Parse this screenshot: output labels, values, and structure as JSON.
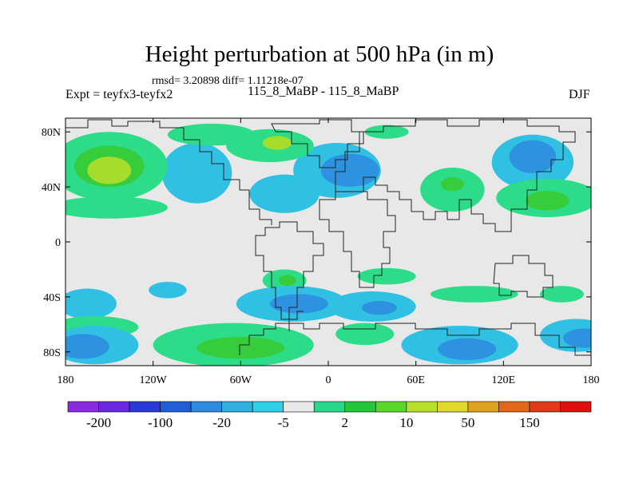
{
  "chart_data": {
    "type": "heatmap",
    "title": "Height perturbation at 500 hPa (in m)",
    "stats_text": "rmsd= 3.20898 diff= 1.11218e-07",
    "left_label": "Expt = teyfx3-teyfx2",
    "center_label": "115_8_MaBP - 115_8_MaBP",
    "right_label": "DJF",
    "x_range": [
      -180,
      180
    ],
    "y_range": [
      -90,
      90
    ],
    "x_ticks": [
      {
        "value": -180,
        "label": "180"
      },
      {
        "value": -120,
        "label": "120W"
      },
      {
        "value": -60,
        "label": "60W"
      },
      {
        "value": 0,
        "label": "0"
      },
      {
        "value": 60,
        "label": "60E"
      },
      {
        "value": 120,
        "label": "120E"
      },
      {
        "value": 180,
        "label": "180"
      }
    ],
    "y_ticks": [
      {
        "value": 80,
        "label": "80N"
      },
      {
        "value": 40,
        "label": "40N"
      },
      {
        "value": 0,
        "label": "0"
      },
      {
        "value": -40,
        "label": "40S"
      },
      {
        "value": -80,
        "label": "80S"
      }
    ],
    "colorbar": {
      "colors": [
        "#8a2be2",
        "#6a28e0",
        "#2a3ad8",
        "#1e5fd8",
        "#2d8be0",
        "#2fb0e0",
        "#2fd0e8",
        "#e8e8e8",
        "#2ad88a",
        "#22c83a",
        "#5ad82a",
        "#b8e02a",
        "#e0d82a",
        "#e0a020",
        "#e06818",
        "#e03818",
        "#e01010"
      ],
      "labels": [
        {
          "index": 1,
          "text": "-200"
        },
        {
          "index": 3,
          "text": "-100"
        },
        {
          "index": 5,
          "text": "-20"
        },
        {
          "index": 7,
          "text": "-5"
        },
        {
          "index": 9,
          "text": "2"
        },
        {
          "index": 11,
          "text": "10"
        },
        {
          "index": 13,
          "text": "50"
        },
        {
          "index": 15,
          "text": "150"
        }
      ]
    },
    "regions": [
      {
        "level": "light-blue",
        "lon": 6,
        "lat": 52,
        "rlon": 30,
        "rlat": 20
      },
      {
        "level": "mid-blue",
        "lon": 15,
        "lat": 52,
        "rlon": 20,
        "rlat": 12
      },
      {
        "level": "light-blue",
        "lon": -90,
        "lat": 50,
        "rlon": 24,
        "rlat": 22
      },
      {
        "level": "light-blue",
        "lon": -30,
        "lat": 35,
        "rlon": 24,
        "rlat": 14
      },
      {
        "level": "green",
        "lon": -40,
        "lat": 70,
        "rlon": 30,
        "rlat": 12
      },
      {
        "level": "yellow-green",
        "lon": -35,
        "lat": 72,
        "rlon": 10,
        "rlat": 5
      },
      {
        "level": "green",
        "lon": -80,
        "lat": 78,
        "rlon": 30,
        "rlat": 8
      },
      {
        "level": "green",
        "lon": 40,
        "lat": 80,
        "rlon": 15,
        "rlat": 5
      },
      {
        "level": "green",
        "lon": -150,
        "lat": 55,
        "rlon": 40,
        "rlat": 25
      },
      {
        "level": "mid-green",
        "lon": -150,
        "lat": 55,
        "rlon": 24,
        "rlat": 15
      },
      {
        "level": "yellow-green",
        "lon": -150,
        "lat": 52,
        "rlon": 15,
        "rlat": 10
      },
      {
        "level": "green",
        "lon": -150,
        "lat": 25,
        "rlon": 40,
        "rlat": 8
      },
      {
        "level": "light-blue",
        "lon": 140,
        "lat": 58,
        "rlon": 28,
        "rlat": 20
      },
      {
        "level": "mid-blue",
        "lon": 140,
        "lat": 62,
        "rlon": 16,
        "rlat": 12
      },
      {
        "level": "green",
        "lon": 150,
        "lat": 32,
        "rlon": 35,
        "rlat": 14
      },
      {
        "level": "mid-green",
        "lon": 150,
        "lat": 30,
        "rlon": 15,
        "rlat": 7
      },
      {
        "level": "green",
        "lon": 85,
        "lat": 38,
        "rlon": 22,
        "rlat": 16
      },
      {
        "level": "mid-green",
        "lon": 85,
        "lat": 42,
        "rlon": 8,
        "rlat": 5
      },
      {
        "level": "green",
        "lon": -30,
        "lat": -28,
        "rlon": 15,
        "rlat": 8
      },
      {
        "level": "mid-green",
        "lon": -28,
        "lat": -28,
        "rlon": 6,
        "rlat": 4
      },
      {
        "level": "green",
        "lon": 40,
        "lat": -25,
        "rlon": 20,
        "rlat": 6
      },
      {
        "level": "light-blue",
        "lon": -110,
        "lat": -35,
        "rlon": 13,
        "rlat": 6
      },
      {
        "level": "light-blue",
        "lon": -165,
        "lat": -45,
        "rlon": 20,
        "rlat": 11
      },
      {
        "level": "light-blue",
        "lon": -25,
        "lat": -45,
        "rlon": 38,
        "rlat": 13
      },
      {
        "level": "mid-blue",
        "lon": -20,
        "lat": -45,
        "rlon": 20,
        "rlat": 7
      },
      {
        "level": "light-blue",
        "lon": 30,
        "lat": -47,
        "rlon": 30,
        "rlat": 11
      },
      {
        "level": "mid-blue",
        "lon": 35,
        "lat": -48,
        "rlon": 12,
        "rlat": 5
      },
      {
        "level": "green",
        "lon": 100,
        "lat": -38,
        "rlon": 30,
        "rlat": 6
      },
      {
        "level": "green",
        "lon": 160,
        "lat": -38,
        "rlon": 15,
        "rlat": 6
      },
      {
        "level": "green",
        "lon": -160,
        "lat": -62,
        "rlon": 30,
        "rlat": 8
      },
      {
        "level": "light-blue",
        "lon": -160,
        "lat": -75,
        "rlon": 30,
        "rlat": 14
      },
      {
        "level": "mid-blue",
        "lon": -168,
        "lat": -76,
        "rlon": 18,
        "rlat": 9
      },
      {
        "level": "green",
        "lon": -65,
        "lat": -75,
        "rlon": 55,
        "rlat": 16
      },
      {
        "level": "mid-green",
        "lon": -60,
        "lat": -77,
        "rlon": 30,
        "rlat": 8
      },
      {
        "level": "green",
        "lon": 25,
        "lat": -67,
        "rlon": 20,
        "rlat": 8
      },
      {
        "level": "light-blue",
        "lon": 90,
        "lat": -75,
        "rlon": 40,
        "rlat": 14
      },
      {
        "level": "mid-blue",
        "lon": 95,
        "lat": -78,
        "rlon": 20,
        "rlat": 8
      },
      {
        "level": "light-blue",
        "lon": 170,
        "lat": -68,
        "rlon": 25,
        "rlat": 12
      },
      {
        "level": "mid-blue",
        "lon": 175,
        "lat": -70,
        "rlon": 14,
        "rlat": 7
      }
    ]
  }
}
